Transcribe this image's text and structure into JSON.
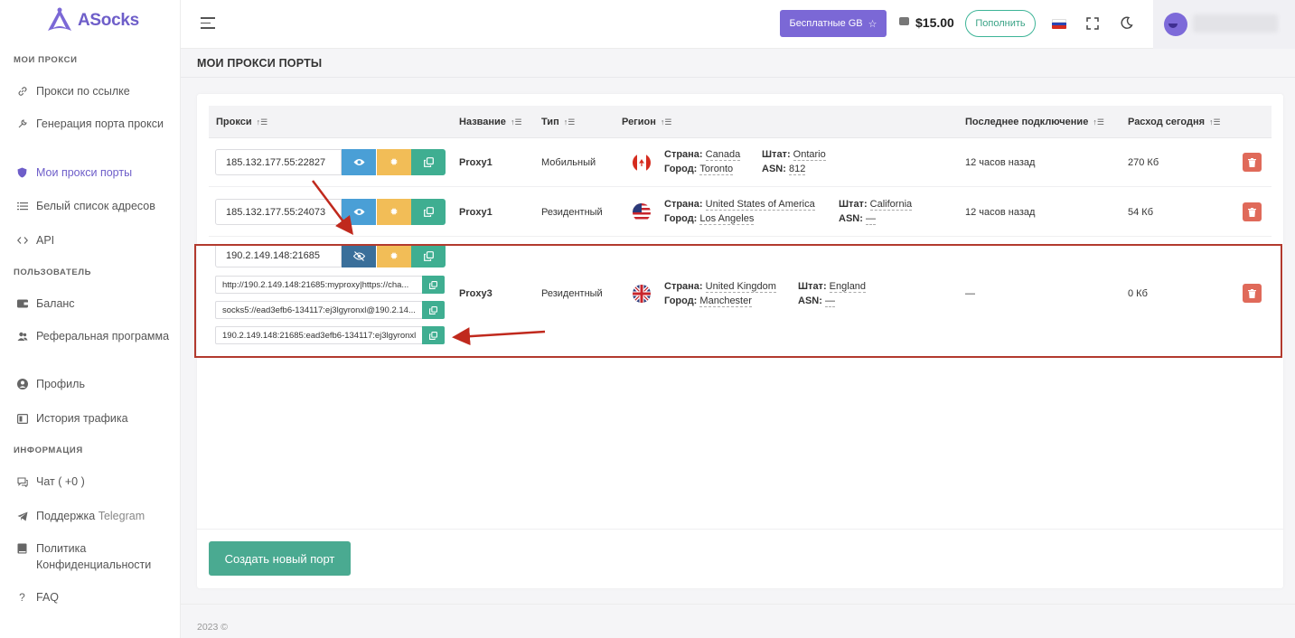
{
  "app": {
    "name": "ASocks",
    "brand_color": "#6e5ec9",
    "accent_color": "#3fae91"
  },
  "sidebar": {
    "sections": [
      {
        "title": "МОИ ПРОКСИ",
        "items": [
          {
            "label": "Прокси по ссылке",
            "icon": "link-icon"
          },
          {
            "label": "Генерация порта прокси",
            "icon": "wrench-icon"
          },
          {
            "label": "Мои прокси порты",
            "icon": "shield-icon",
            "active": true
          },
          {
            "label": "Белый список адресов",
            "icon": "list-icon"
          },
          {
            "label": "API",
            "icon": "code-icon"
          }
        ]
      },
      {
        "title": "ПОЛЬЗОВАТЕЛЬ",
        "items": [
          {
            "label": "Баланс",
            "icon": "wallet-icon"
          },
          {
            "label": "Реферальная программа",
            "icon": "users-icon"
          },
          {
            "label": "Профиль",
            "icon": "user-circle-icon"
          },
          {
            "label": "История трафика",
            "icon": "history-icon"
          }
        ]
      },
      {
        "title": "ИНФОРМАЦИЯ",
        "items": [
          {
            "label": "Чат ( +0 )",
            "icon": "chat-icon"
          },
          {
            "label": "Поддержка",
            "label_suffix": "Telegram",
            "icon": "telegram-icon"
          },
          {
            "label": "Политика Конфиденциальности",
            "icon": "book-icon"
          },
          {
            "label": "FAQ",
            "icon": "question-icon"
          }
        ]
      }
    ]
  },
  "header": {
    "free_gb_label": "Бесплатные GB",
    "balance": "$15.00",
    "topup_label": "Пополнить",
    "language_flag": "flag-ru-icon"
  },
  "page": {
    "title": "МОИ ПРОКСИ ПОРТЫ"
  },
  "table": {
    "columns": [
      "Прокси",
      "Название",
      "Тип",
      "Регион",
      "Последнее подключение",
      "Расход сегодня"
    ],
    "labels": {
      "country": "Страна:",
      "city": "Город:",
      "state": "Штат:",
      "asn": "ASN:"
    },
    "rows": [
      {
        "proxy": "185.132.177.55:22827",
        "name": "Proxy1",
        "type": "Мобильный",
        "country": "Canada",
        "city": "Toronto",
        "state": "Ontario",
        "asn": "812",
        "last_connection": "12 часов назад",
        "usage": "270 Кб",
        "flag": "flag-ca-icon"
      },
      {
        "proxy": "185.132.177.55:24073",
        "name": "Proxy1",
        "type": "Резидентный",
        "country": "United States of America",
        "city": "Los Angeles",
        "state": "California",
        "asn": "—",
        "last_connection": "12 часов назад",
        "usage": "54 Кб",
        "flag": "flag-us-icon"
      },
      {
        "proxy": "190.2.149.148:21685",
        "name": "Proxy3",
        "type": "Резидентный",
        "country": "United Kingdom",
        "city": "Manchester",
        "state": "England",
        "asn": "—",
        "last_connection": "—",
        "usage": "0 Кб",
        "flag": "flag-gb-icon",
        "expanded": [
          "http://190.2.149.148:21685:myproxy|https://cha...",
          "socks5://ead3efb6-134117:ej3lgyronxl@190.2.14...",
          "190.2.149.148:21685:ead3efb6-134117:ej3lgyronxl"
        ]
      }
    ]
  },
  "actions": {
    "create_port_label": "Создать новый порт"
  },
  "footer": {
    "copyright": "2023 ©"
  }
}
